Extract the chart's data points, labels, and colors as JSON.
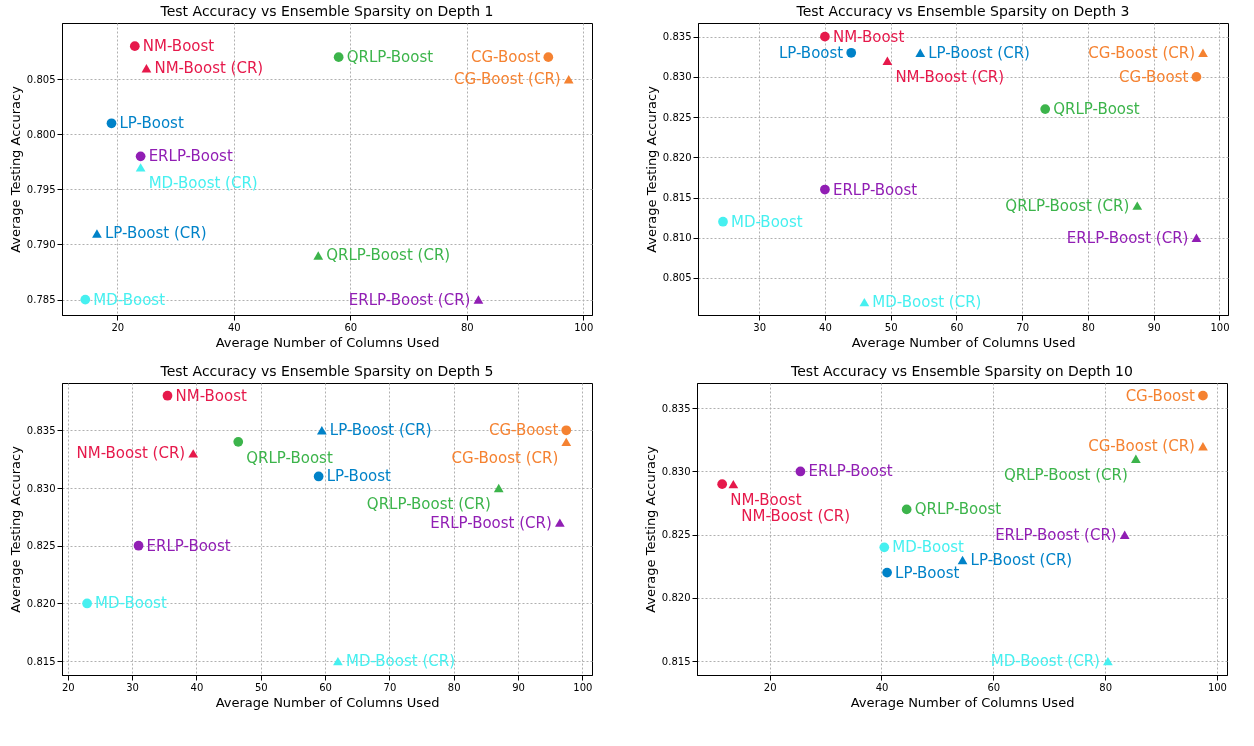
{
  "chart_data": [
    {
      "type": "scatter",
      "title": "Test Accuracy vs Ensemble Sparsity on Depth 1",
      "xlabel": "Average Number of Columns Used",
      "ylabel": "Average Testing Accuracy",
      "xlim": [
        10.5,
        101.5
      ],
      "ylim": [
        0.7836,
        0.8101
      ],
      "xticks": [
        20,
        40,
        60,
        80,
        100
      ],
      "yticks": [
        0.785,
        {
          "value": 0.79,
          "label": "0.790"
        },
        0.795,
        {
          "value": 0.8,
          "label": "0.800"
        },
        0.805
      ],
      "grid": true,
      "series": [
        {
          "name": "NM-Boost",
          "color": "#e6194b",
          "marker": "circle",
          "x": [
            23
          ],
          "values": [
            0.808
          ]
        },
        {
          "name": "NM-Boost (CR)",
          "color": "#e6194b",
          "marker": "triangle",
          "x": [
            25
          ],
          "values": [
            0.806
          ]
        },
        {
          "name": "QRLP-Boost",
          "color": "#3cb44b",
          "marker": "circle",
          "x": [
            58
          ],
          "values": [
            0.807
          ]
        },
        {
          "name": "CG-Boost",
          "color": "#f58231",
          "marker": "circle",
          "x": [
            94
          ],
          "values": [
            0.807
          ]
        },
        {
          "name": "CG-Boost (CR)",
          "color": "#f58231",
          "marker": "triangle",
          "x": [
            97.5
          ],
          "values": [
            0.805
          ]
        },
        {
          "name": "LP-Boost",
          "color": "#0082c8",
          "marker": "circle",
          "x": [
            19
          ],
          "values": [
            0.801
          ]
        },
        {
          "name": "ERLP-Boost",
          "color": "#911eb4",
          "marker": "circle",
          "x": [
            24
          ],
          "values": [
            0.798
          ]
        },
        {
          "name": "MD-Boost (CR)",
          "color": "#46f0f0",
          "marker": "triangle",
          "x": [
            24
          ],
          "values": [
            0.797
          ]
        },
        {
          "name": "LP-Boost (CR)",
          "color": "#0082c8",
          "marker": "triangle",
          "x": [
            16.5
          ],
          "values": [
            0.791
          ]
        },
        {
          "name": "QRLP-Boost (CR)",
          "color": "#3cb44b",
          "marker": "triangle",
          "x": [
            54.5
          ],
          "values": [
            0.789
          ]
        },
        {
          "name": "MD-Boost",
          "color": "#46f0f0",
          "marker": "circle",
          "x": [
            14.5
          ],
          "values": [
            0.785
          ]
        },
        {
          "name": "ERLP-Boost (CR)",
          "color": "#911eb4",
          "marker": "triangle",
          "x": [
            82
          ],
          "values": [
            0.785
          ]
        }
      ]
    },
    {
      "type": "scatter",
      "title": "Test Accuracy vs Ensemble Sparsity on Depth 3",
      "xlabel": "Average Number of Columns Used",
      "ylabel": "Average Testing Accuracy",
      "xlim": [
        20.7,
        101.3
      ],
      "ylim": [
        0.8004,
        0.8367
      ],
      "xticks": [
        30,
        40,
        50,
        60,
        70,
        80,
        90,
        100
      ],
      "yticks": [
        0.805,
        {
          "value": 0.81,
          "label": "0.810"
        },
        0.815,
        {
          "value": 0.82,
          "label": "0.820"
        },
        0.825,
        {
          "value": 0.83,
          "label": "0.830"
        },
        0.835
      ],
      "grid": true,
      "series": [
        {
          "name": "NM-Boost",
          "color": "#e6194b",
          "marker": "circle",
          "x": [
            40
          ],
          "values": [
            0.835
          ]
        },
        {
          "name": "LP-Boost",
          "color": "#0082c8",
          "marker": "circle",
          "x": [
            44
          ],
          "values": [
            0.833
          ]
        },
        {
          "name": "LP-Boost (CR)",
          "color": "#0082c8",
          "marker": "triangle",
          "x": [
            54.5
          ],
          "values": [
            0.833
          ]
        },
        {
          "name": "NM-Boost (CR)",
          "color": "#e6194b",
          "marker": "triangle",
          "x": [
            49.5
          ],
          "values": [
            0.832
          ]
        },
        {
          "name": "CG-Boost (CR)",
          "color": "#f58231",
          "marker": "triangle",
          "x": [
            97.5
          ],
          "values": [
            0.833
          ]
        },
        {
          "name": "CG-Boost",
          "color": "#f58231",
          "marker": "circle",
          "x": [
            96.5
          ],
          "values": [
            0.83
          ]
        },
        {
          "name": "QRLP-Boost",
          "color": "#3cb44b",
          "marker": "circle",
          "x": [
            73.5
          ],
          "values": [
            0.826
          ]
        },
        {
          "name": "ERLP-Boost",
          "color": "#911eb4",
          "marker": "circle",
          "x": [
            40
          ],
          "values": [
            0.816
          ]
        },
        {
          "name": "QRLP-Boost (CR)",
          "color": "#3cb44b",
          "marker": "triangle",
          "x": [
            87.5
          ],
          "values": [
            0.814
          ]
        },
        {
          "name": "MD-Boost",
          "color": "#46f0f0",
          "marker": "circle",
          "x": [
            24.5
          ],
          "values": [
            0.812
          ]
        },
        {
          "name": "ERLP-Boost (CR)",
          "color": "#911eb4",
          "marker": "triangle",
          "x": [
            96.5
          ],
          "values": [
            0.81
          ]
        },
        {
          "name": "MD-Boost (CR)",
          "color": "#46f0f0",
          "marker": "triangle",
          "x": [
            46
          ],
          "values": [
            0.802
          ]
        }
      ]
    },
    {
      "type": "scatter",
      "title": "Test Accuracy vs Ensemble Sparsity on Depth 5",
      "xlabel": "Average Number of Columns Used",
      "ylabel": "Average Testing Accuracy",
      "xlim": [
        19.1,
        101.5
      ],
      "ylim": [
        0.8138,
        0.8391
      ],
      "xticks": [
        20,
        30,
        40,
        50,
        60,
        70,
        80,
        90,
        100
      ],
      "yticks": [
        0.815,
        {
          "value": 0.82,
          "label": "0.820"
        },
        0.825,
        {
          "value": 0.83,
          "label": "0.830"
        },
        0.835
      ],
      "grid": true,
      "series": [
        {
          "name": "NM-Boost",
          "color": "#e6194b",
          "marker": "circle",
          "x": [
            35.5
          ],
          "values": [
            0.838
          ]
        },
        {
          "name": "LP-Boost (CR)",
          "color": "#0082c8",
          "marker": "triangle",
          "x": [
            59.5
          ],
          "values": [
            0.835
          ]
        },
        {
          "name": "CG-Boost",
          "color": "#f58231",
          "marker": "circle",
          "x": [
            97.5
          ],
          "values": [
            0.835
          ]
        },
        {
          "name": "QRLP-Boost",
          "color": "#3cb44b",
          "marker": "circle",
          "x": [
            46.5
          ],
          "values": [
            0.834
          ]
        },
        {
          "name": "CG-Boost (CR)",
          "color": "#f58231",
          "marker": "triangle",
          "x": [
            97.5
          ],
          "values": [
            0.834
          ]
        },
        {
          "name": "NM-Boost (CR)",
          "color": "#e6194b",
          "marker": "triangle",
          "x": [
            39.5
          ],
          "values": [
            0.833
          ]
        },
        {
          "name": "LP-Boost",
          "color": "#0082c8",
          "marker": "circle",
          "x": [
            59
          ],
          "values": [
            0.831
          ]
        },
        {
          "name": "QRLP-Boost (CR)",
          "color": "#3cb44b",
          "marker": "triangle",
          "x": [
            87
          ],
          "values": [
            0.83
          ]
        },
        {
          "name": "ERLP-Boost (CR)",
          "color": "#911eb4",
          "marker": "triangle",
          "x": [
            96.5
          ],
          "values": [
            0.827
          ]
        },
        {
          "name": "ERLP-Boost",
          "color": "#911eb4",
          "marker": "circle",
          "x": [
            31
          ],
          "values": [
            0.825
          ]
        },
        {
          "name": "MD-Boost",
          "color": "#46f0f0",
          "marker": "circle",
          "x": [
            23
          ],
          "values": [
            0.82
          ]
        },
        {
          "name": "MD-Boost (CR)",
          "color": "#46f0f0",
          "marker": "triangle",
          "x": [
            62
          ],
          "values": [
            0.815
          ]
        }
      ]
    },
    {
      "type": "scatter",
      "title": "Test Accuracy vs Ensemble Sparsity on Depth 10",
      "xlabel": "Average Number of Columns Used",
      "ylabel": "Average Testing Accuracy",
      "xlim": [
        7,
        101.8
      ],
      "ylim": [
        0.8139,
        0.837
      ],
      "xticks": [
        20,
        40,
        60,
        80,
        100
      ],
      "yticks": [
        0.815,
        {
          "value": 0.82,
          "label": "0.820"
        },
        0.825,
        {
          "value": 0.83,
          "label": "0.830"
        },
        0.835
      ],
      "grid": true,
      "series": [
        {
          "name": "CG-Boost",
          "color": "#f58231",
          "marker": "circle",
          "x": [
            97.5
          ],
          "values": [
            0.836
          ]
        },
        {
          "name": "CG-Boost (CR)",
          "color": "#f58231",
          "marker": "triangle",
          "x": [
            97.5
          ],
          "values": [
            0.832
          ]
        },
        {
          "name": "QRLP-Boost (CR)",
          "color": "#3cb44b",
          "marker": "triangle",
          "x": [
            85.5
          ],
          "values": [
            0.831
          ]
        },
        {
          "name": "ERLP-Boost",
          "color": "#911eb4",
          "marker": "circle",
          "x": [
            25.5
          ],
          "values": [
            0.83
          ]
        },
        {
          "name": "NM-Boost",
          "color": "#e6194b",
          "marker": "circle",
          "x": [
            11.5
          ],
          "values": [
            0.829
          ]
        },
        {
          "name": "NM-Boost (CR)",
          "color": "#e6194b",
          "marker": "triangle",
          "x": [
            13.5
          ],
          "values": [
            0.829
          ]
        },
        {
          "name": "QRLP-Boost",
          "color": "#3cb44b",
          "marker": "circle",
          "x": [
            44.5
          ],
          "values": [
            0.827
          ]
        },
        {
          "name": "ERLP-Boost (CR)",
          "color": "#911eb4",
          "marker": "triangle",
          "x": [
            83.5
          ],
          "values": [
            0.825
          ]
        },
        {
          "name": "MD-Boost",
          "color": "#46f0f0",
          "marker": "circle",
          "x": [
            40.5
          ],
          "values": [
            0.824
          ]
        },
        {
          "name": "LP-Boost (CR)",
          "color": "#0082c8",
          "marker": "triangle",
          "x": [
            54.5
          ],
          "values": [
            0.823
          ]
        },
        {
          "name": "LP-Boost",
          "color": "#0082c8",
          "marker": "circle",
          "x": [
            41
          ],
          "values": [
            0.822
          ]
        },
        {
          "name": "MD-Boost (CR)",
          "color": "#46f0f0",
          "marker": "triangle",
          "x": [
            80.5
          ],
          "values": [
            0.815
          ]
        }
      ]
    }
  ]
}
